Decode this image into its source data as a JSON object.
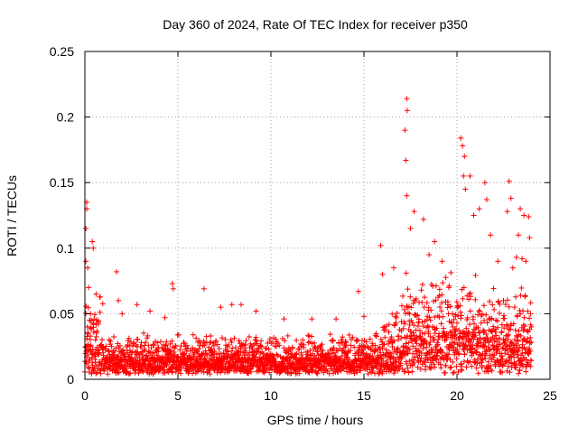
{
  "chart_data": {
    "type": "scatter",
    "title": "Day 360 of 2024, Rate Of TEC Index for receiver p350",
    "xlabel": "GPS time / hours",
    "ylabel": "ROTI / TECUs",
    "xlim": [
      0,
      25
    ],
    "ylim": [
      0,
      0.25
    ],
    "x_ticks": [
      0,
      5,
      10,
      15,
      20,
      25
    ],
    "x_tick_labels": [
      "0",
      "5",
      "10",
      "15",
      "20",
      "25"
    ],
    "y_ticks": [
      0,
      0.05,
      0.1,
      0.15,
      0.2,
      0.25
    ],
    "y_tick_labels": [
      "0",
      "0.05",
      "0.1",
      "0.15",
      "0.2",
      "0.25"
    ],
    "grid": true,
    "marker": "+",
    "marker_color": "#ff0000",
    "series": [
      {
        "name": "ROTI",
        "x_range": [
          0,
          24
        ],
        "note": "dense scatter; representative points read from the figure",
        "points": [
          [
            0.1,
            0.135
          ],
          [
            0.1,
            0.13
          ],
          [
            0.05,
            0.115
          ],
          [
            0.05,
            0.09
          ],
          [
            0.15,
            0.085
          ],
          [
            0.2,
            0.07
          ],
          [
            0.3,
            0.05
          ],
          [
            0.4,
            0.105
          ],
          [
            0.45,
            0.1
          ],
          [
            0.6,
            0.065
          ],
          [
            1.7,
            0.082
          ],
          [
            1.8,
            0.06
          ],
          [
            2.0,
            0.05
          ],
          [
            2.8,
            0.057
          ],
          [
            3.5,
            0.052
          ],
          [
            4.3,
            0.047
          ],
          [
            4.7,
            0.073
          ],
          [
            4.75,
            0.069
          ],
          [
            6.4,
            0.069
          ],
          [
            7.3,
            0.055
          ],
          [
            7.9,
            0.057
          ],
          [
            8.4,
            0.057
          ],
          [
            9.2,
            0.052
          ],
          [
            10.7,
            0.046
          ],
          [
            12.2,
            0.046
          ],
          [
            13.5,
            0.046
          ],
          [
            14.7,
            0.067
          ],
          [
            15.0,
            0.048
          ],
          [
            15.9,
            0.102
          ],
          [
            16.0,
            0.08
          ],
          [
            16.6,
            0.085
          ],
          [
            17.2,
            0.19
          ],
          [
            17.3,
            0.214
          ],
          [
            17.32,
            0.205
          ],
          [
            17.25,
            0.167
          ],
          [
            17.3,
            0.14
          ],
          [
            17.5,
            0.115
          ],
          [
            17.7,
            0.128
          ],
          [
            18.2,
            0.122
          ],
          [
            18.5,
            0.095
          ],
          [
            18.8,
            0.105
          ],
          [
            19.2,
            0.09
          ],
          [
            20.2,
            0.184
          ],
          [
            20.3,
            0.178
          ],
          [
            20.4,
            0.17
          ],
          [
            20.35,
            0.155
          ],
          [
            20.45,
            0.145
          ],
          [
            20.7,
            0.155
          ],
          [
            20.9,
            0.125
          ],
          [
            21.5,
            0.15
          ],
          [
            21.6,
            0.137
          ],
          [
            21.2,
            0.13
          ],
          [
            21.8,
            0.11
          ],
          [
            22.2,
            0.09
          ],
          [
            22.8,
            0.151
          ],
          [
            22.9,
            0.138
          ],
          [
            22.7,
            0.128
          ],
          [
            23.0,
            0.085
          ],
          [
            23.4,
            0.13
          ],
          [
            23.6,
            0.125
          ],
          [
            23.85,
            0.124
          ],
          [
            23.3,
            0.11
          ],
          [
            23.2,
            0.093
          ],
          [
            23.5,
            0.092
          ],
          [
            23.7,
            0.09
          ],
          [
            23.9,
            0.108
          ],
          [
            23.1,
            0.055
          ],
          [
            23.95,
            0.05
          ],
          [
            24.0,
            0.04
          ],
          [
            22.5,
            0.06
          ]
        ]
      }
    ]
  }
}
